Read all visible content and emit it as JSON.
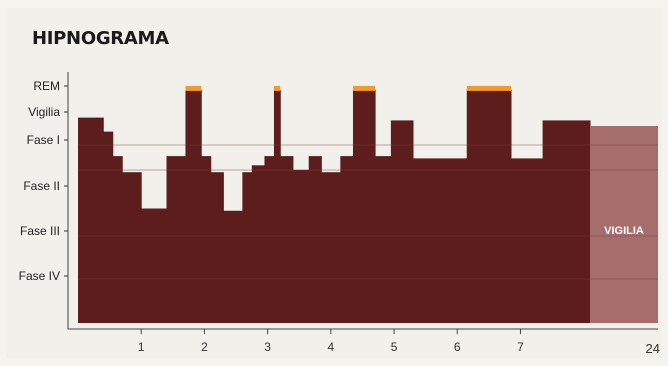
{
  "page": {
    "title": "HIPNOGRAMA",
    "page_number": "24"
  },
  "chart_data": {
    "type": "area",
    "title": "HIPNOGRAMA",
    "xlabel": "",
    "ylabel": "",
    "x_ticks": [
      "1",
      "2",
      "3",
      "4",
      "5",
      "6",
      "7"
    ],
    "y_categories": [
      "REM",
      "Vigilia",
      "Fase I",
      "Fase II",
      "Fase III",
      "Fase IV"
    ],
    "xlim": [
      0,
      8.1
    ],
    "wake_band": {
      "label": "VIGILIA",
      "from": 8.1,
      "to": 9.1
    },
    "steps": [
      {
        "from": 0.0,
        "to": 0.4,
        "stage": "Fase I",
        "depth": 1.2
      },
      {
        "from": 0.4,
        "to": 0.55,
        "stage": "Fase II",
        "depth": 1.7
      },
      {
        "from": 0.55,
        "to": 0.7,
        "stage": "Fase II",
        "depth": 2.35
      },
      {
        "from": 0.7,
        "to": 1.0,
        "stage": "Fase III",
        "depth": 2.7
      },
      {
        "from": 1.0,
        "to": 1.4,
        "stage": "Fase IV",
        "depth": 3.5
      },
      {
        "from": 1.4,
        "to": 1.7,
        "stage": "Fase II",
        "depth": 2.35
      },
      {
        "from": 1.7,
        "to": 1.95,
        "stage": "REM",
        "depth": 0.15
      },
      {
        "from": 1.95,
        "to": 2.1,
        "stage": "Fase II",
        "depth": 2.35
      },
      {
        "from": 2.1,
        "to": 2.3,
        "stage": "Fase III",
        "depth": 2.7
      },
      {
        "from": 2.3,
        "to": 2.6,
        "stage": "Fase IV",
        "depth": 3.55
      },
      {
        "from": 2.6,
        "to": 2.75,
        "stage": "Fase III",
        "depth": 2.7
      },
      {
        "from": 2.75,
        "to": 2.95,
        "stage": "Fase III",
        "depth": 2.55
      },
      {
        "from": 2.95,
        "to": 3.1,
        "stage": "Fase II",
        "depth": 2.35
      },
      {
        "from": 3.1,
        "to": 3.2,
        "stage": "REM",
        "depth": 0.15
      },
      {
        "from": 3.2,
        "to": 3.4,
        "stage": "Fase II",
        "depth": 2.35
      },
      {
        "from": 3.4,
        "to": 3.65,
        "stage": "Fase III",
        "depth": 2.65
      },
      {
        "from": 3.65,
        "to": 3.85,
        "stage": "Fase II",
        "depth": 2.35
      },
      {
        "from": 3.85,
        "to": 4.15,
        "stage": "Fase III",
        "depth": 2.7
      },
      {
        "from": 4.15,
        "to": 4.35,
        "stage": "Fase II",
        "depth": 2.35
      },
      {
        "from": 4.35,
        "to": 4.7,
        "stage": "REM",
        "depth": 0.15
      },
      {
        "from": 4.7,
        "to": 4.95,
        "stage": "Fase II",
        "depth": 2.35
      },
      {
        "from": 4.95,
        "to": 5.3,
        "stage": "Fase I",
        "depth": 1.3
      },
      {
        "from": 5.3,
        "to": 6.15,
        "stage": "Fase II",
        "depth": 2.4
      },
      {
        "from": 6.15,
        "to": 6.85,
        "stage": "REM",
        "depth": 0.15
      },
      {
        "from": 6.85,
        "to": 7.35,
        "stage": "Fase II",
        "depth": 2.4
      },
      {
        "from": 7.35,
        "to": 8.1,
        "stage": "Fase I",
        "depth": 1.3
      }
    ],
    "colors": {
      "sleep": "#5e1d1d",
      "rem": "#f39a2a",
      "wake": "#a56e6c",
      "gridline": "#7a3e3c"
    }
  }
}
